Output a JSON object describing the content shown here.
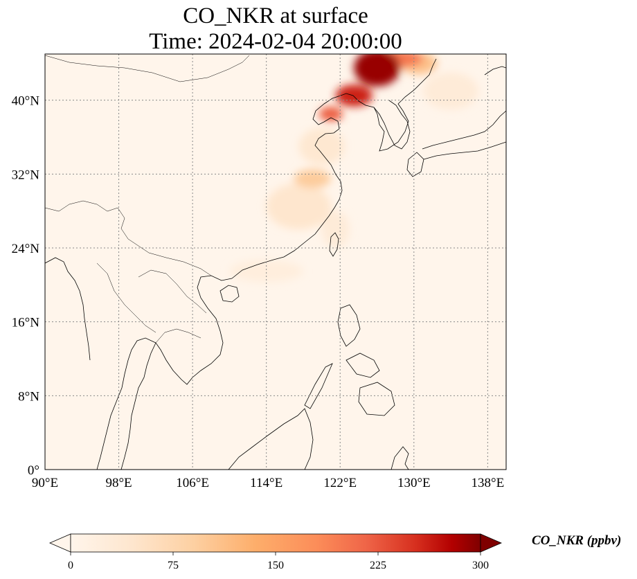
{
  "title": {
    "line1": "CO_NKR at surface",
    "line2": "Time: 2024-02-04 20:00:00"
  },
  "map": {
    "lon_range": [
      90,
      140
    ],
    "lat_range": [
      0,
      45
    ],
    "lon_ticks": [
      {
        "value": 90,
        "label": "90°E"
      },
      {
        "value": 98,
        "label": "98°E"
      },
      {
        "value": 106,
        "label": "106°E"
      },
      {
        "value": 114,
        "label": "114°E"
      },
      {
        "value": 122,
        "label": "122°E"
      },
      {
        "value": 130,
        "label": "130°E"
      },
      {
        "value": 138,
        "label": "138°E"
      }
    ],
    "lat_ticks": [
      {
        "value": 0,
        "label": "0°"
      },
      {
        "value": 8,
        "label": "8°N"
      },
      {
        "value": 16,
        "label": "16°N"
      },
      {
        "value": 24,
        "label": "24°N"
      },
      {
        "value": 32,
        "label": "32°N"
      },
      {
        "value": 40,
        "label": "40°N"
      }
    ],
    "gridlines": true,
    "background_color": "#fff5eb",
    "coastline_color": "#000000",
    "grid_color": "#888888"
  },
  "colorbar": {
    "label": "CO_NKR (ppbv)",
    "min": 0,
    "max": 300,
    "extend": "both",
    "colormap": "OrRd",
    "ticks": [
      {
        "value": 0,
        "label": "0"
      },
      {
        "value": 75,
        "label": "75"
      },
      {
        "value": 150,
        "label": "150"
      },
      {
        "value": 225,
        "label": "225"
      },
      {
        "value": 300,
        "label": "300"
      }
    ]
  },
  "plumes": [
    {
      "lon": 126.0,
      "lat": 43.5,
      "rx_deg": 2.5,
      "ry_deg": 2.0,
      "value": 290
    },
    {
      "lon": 123.5,
      "lat": 40.5,
      "rx_deg": 2.0,
      "ry_deg": 1.2,
      "value": 260
    },
    {
      "lon": 121.0,
      "lat": 38.5,
      "rx_deg": 1.3,
      "ry_deg": 0.8,
      "value": 220
    },
    {
      "lon": 128.0,
      "lat": 44.5,
      "rx_deg": 3.0,
      "ry_deg": 1.0,
      "value": 200
    },
    {
      "lon": 130.5,
      "lat": 44.0,
      "rx_deg": 2.0,
      "ry_deg": 1.2,
      "value": 110
    },
    {
      "lon": 119.0,
      "lat": 31.5,
      "rx_deg": 2.0,
      "ry_deg": 1.0,
      "value": 95
    },
    {
      "lon": 117.5,
      "lat": 28.5,
      "rx_deg": 3.5,
      "ry_deg": 2.5,
      "value": 45
    },
    {
      "lon": 120.0,
      "lat": 35.0,
      "rx_deg": 2.5,
      "ry_deg": 2.0,
      "value": 40
    },
    {
      "lon": 121.5,
      "lat": 26.0,
      "rx_deg": 1.5,
      "ry_deg": 2.0,
      "value": 30
    },
    {
      "lon": 114.0,
      "lat": 21.5,
      "rx_deg": 4.0,
      "ry_deg": 1.2,
      "value": 22
    },
    {
      "lon": 134.0,
      "lat": 41.0,
      "rx_deg": 3.0,
      "ry_deg": 2.0,
      "value": 30
    }
  ]
}
